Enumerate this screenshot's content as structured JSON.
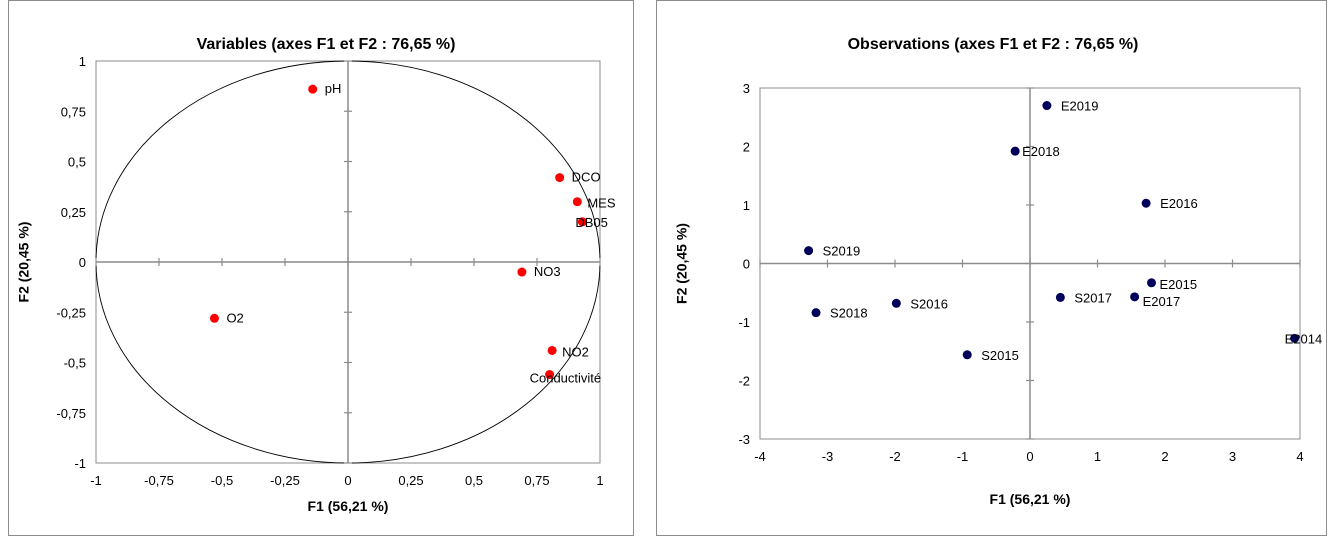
{
  "chart_data": [
    {
      "type": "scatter",
      "title": "Variables (axes F1 et F2 : 76,65 %)",
      "xlabel": "F1 (56,21 %)",
      "ylabel": "F2 (20,45 %)",
      "xlim": [
        -1,
        1
      ],
      "ylim": [
        -1,
        1
      ],
      "xticks": [
        -1,
        -0.75,
        -0.5,
        -0.25,
        0,
        0.25,
        0.5,
        0.75,
        1
      ],
      "yticks": [
        -1,
        -0.75,
        -0.5,
        -0.25,
        0,
        0.25,
        0.5,
        0.75,
        1
      ],
      "xtick_labels": [
        "-1",
        "-0,75",
        "-0,5",
        "-0,25",
        "0",
        "0,25",
        "0,5",
        "0,75",
        "1"
      ],
      "ytick_labels": [
        "-1",
        "-0,75",
        "-0,5",
        "-0,25",
        "0",
        "0,25",
        "0,5",
        "0,75",
        "1"
      ],
      "unit_circle": true,
      "point_color": "#ff0000",
      "points": [
        {
          "label": "pH",
          "x": -0.14,
          "y": 0.86
        },
        {
          "label": "DCO",
          "x": 0.84,
          "y": 0.42
        },
        {
          "label": "MES",
          "x": 0.91,
          "y": 0.3
        },
        {
          "label": "DB05",
          "x": 0.93,
          "y": 0.2
        },
        {
          "label": "NO3",
          "x": 0.69,
          "y": -0.05
        },
        {
          "label": "O2",
          "x": -0.53,
          "y": -0.28
        },
        {
          "label": "NO2",
          "x": 0.81,
          "y": -0.44
        },
        {
          "label": "Conductivité",
          "x": 0.8,
          "y": -0.56
        }
      ]
    },
    {
      "type": "scatter",
      "title": "Observations (axes F1 et F2 : 76,65 %)",
      "xlabel": "F1 (56,21 %)",
      "ylabel": "F2 (20,45 %)",
      "xlim": [
        -4,
        4
      ],
      "ylim": [
        -3,
        3
      ],
      "xticks": [
        -4,
        -3,
        -2,
        -1,
        0,
        1,
        2,
        3,
        4
      ],
      "yticks": [
        -3,
        -2,
        -1,
        0,
        1,
        2,
        3
      ],
      "xtick_labels": [
        "-4",
        "-3",
        "-2",
        "-1",
        "0",
        "1",
        "2",
        "3",
        "4"
      ],
      "ytick_labels": [
        "-3",
        "-2",
        "-1",
        "0",
        "1",
        "2",
        "3"
      ],
      "unit_circle": false,
      "point_color": "#00005a",
      "points": [
        {
          "label": "E2019",
          "x": 0.25,
          "y": 2.7
        },
        {
          "label": "E2018",
          "x": -0.22,
          "y": 1.92
        },
        {
          "label": "E2016",
          "x": 1.72,
          "y": 1.03
        },
        {
          "label": "S2019",
          "x": -3.28,
          "y": 0.22
        },
        {
          "label": "E2015",
          "x": 1.8,
          "y": -0.33
        },
        {
          "label": "E2017",
          "x": 1.55,
          "y": -0.57
        },
        {
          "label": "S2017",
          "x": 0.45,
          "y": -0.58
        },
        {
          "label": "S2016",
          "x": -1.98,
          "y": -0.68
        },
        {
          "label": "S2018",
          "x": -3.17,
          "y": -0.84
        },
        {
          "label": "E2014",
          "x": 3.92,
          "y": -1.28
        },
        {
          "label": "S2015",
          "x": -0.93,
          "y": -1.56
        }
      ]
    }
  ]
}
